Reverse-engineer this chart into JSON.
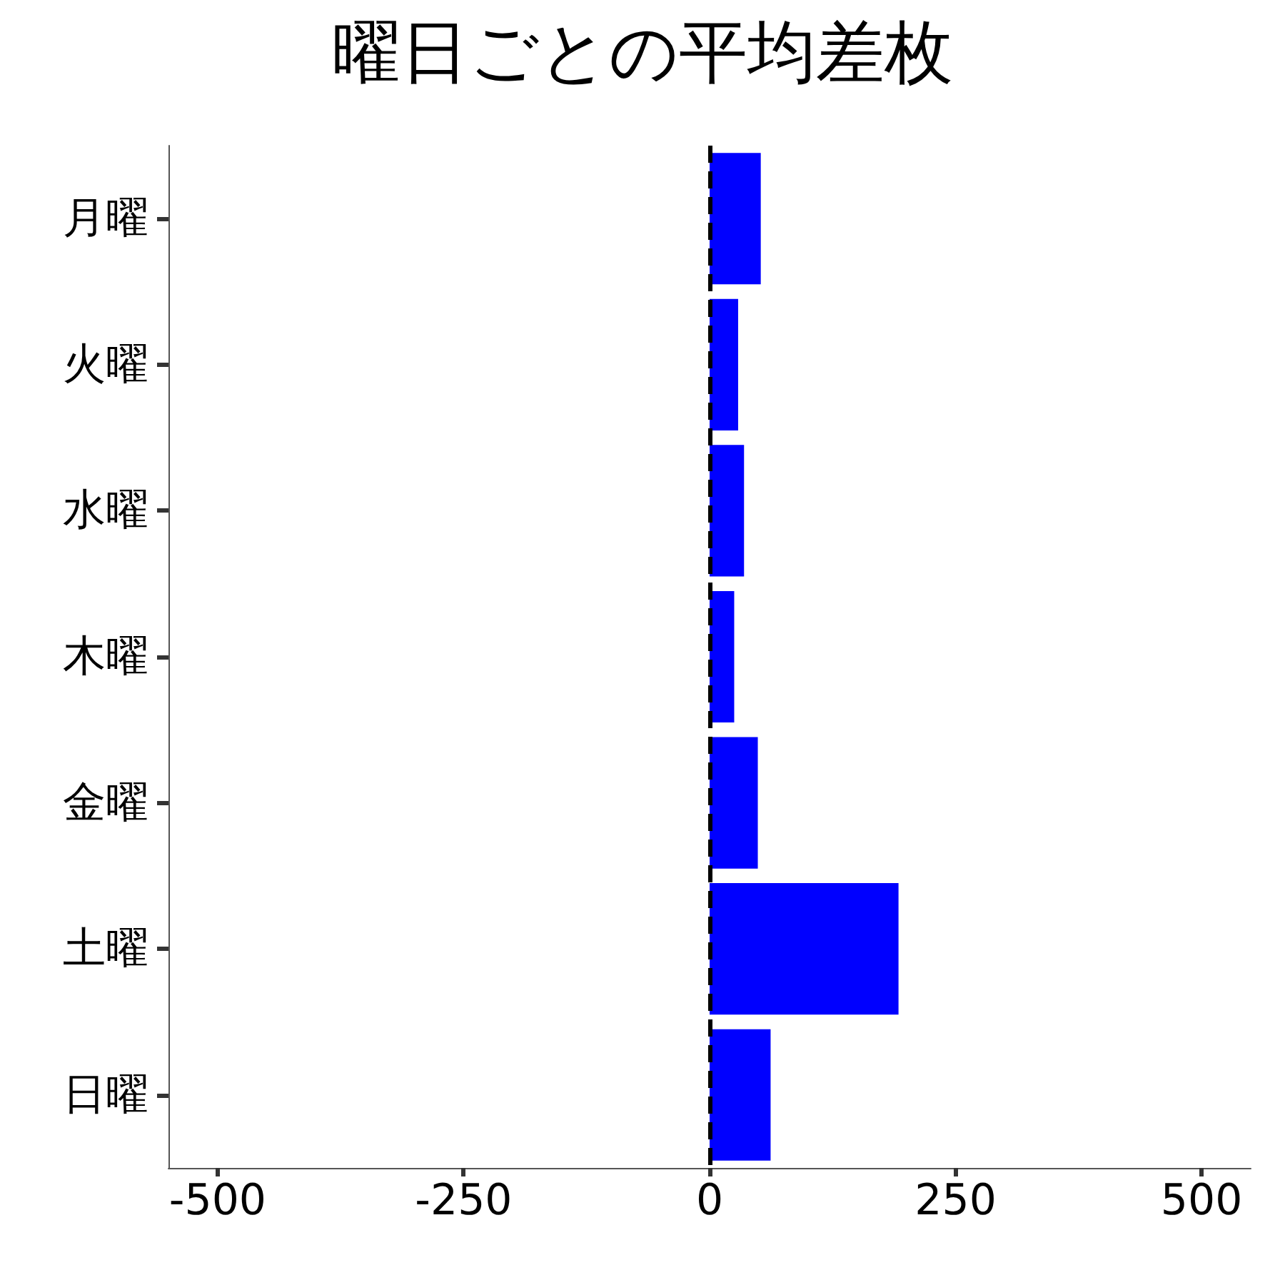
{
  "chart_data": {
    "type": "bar",
    "orientation": "horizontal",
    "title": "曜日ごとの平均差枚",
    "categories": [
      "月曜",
      "火曜",
      "水曜",
      "木曜",
      "金曜",
      "土曜",
      "日曜"
    ],
    "values": [
      52,
      29,
      35,
      25,
      49,
      192,
      62
    ],
    "color": "#0000ff",
    "xlim": [
      -550,
      550
    ],
    "xticks": [
      -500,
      -250,
      0,
      250,
      500
    ],
    "grid": false,
    "ref_lines": [
      {
        "axis": "x",
        "value": 0,
        "label": null,
        "color": "#000000",
        "line_style": "dashed"
      }
    ]
  }
}
